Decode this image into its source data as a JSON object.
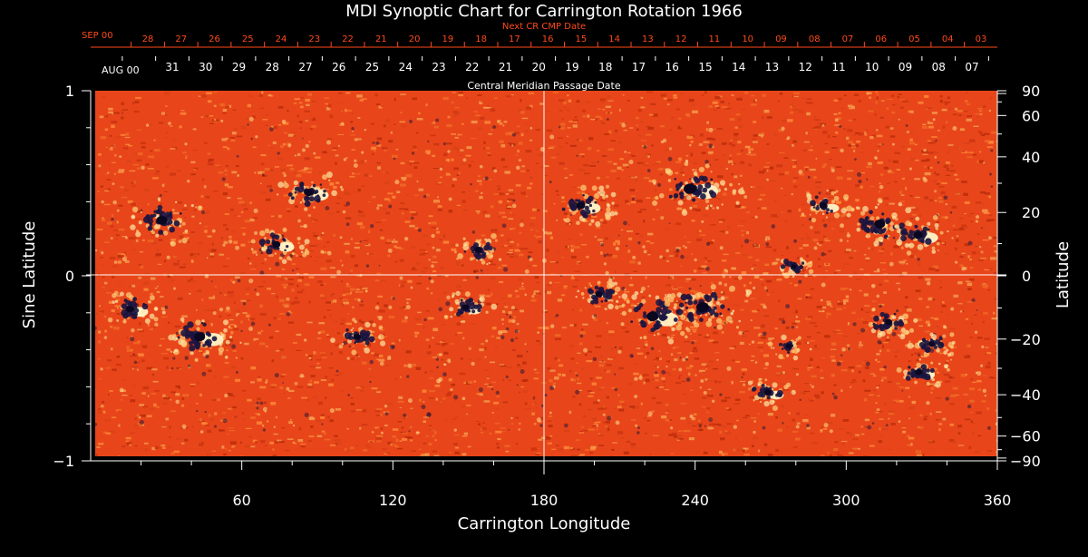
{
  "chart_data": {
    "type": "heatmap",
    "title": "MDI Synoptic Chart for Carrington Rotation 1966",
    "xlabel": "Carrington Longitude",
    "ylabel_left": "Sine Latitude",
    "ylabel_right": "Latitude",
    "xlim": [
      0,
      360
    ],
    "ylim_sine": [
      -1,
      1
    ],
    "x_ticks": [
      60,
      120,
      180,
      240,
      300,
      360
    ],
    "y_ticks_left": [
      {
        "value": 1,
        "label": "1"
      },
      {
        "value": 0,
        "label": "0"
      },
      {
        "value": -1,
        "label": "−1"
      }
    ],
    "y_ticks_right_latitude": [
      90,
      60,
      40,
      20,
      0,
      -20,
      -40,
      -60,
      -90
    ],
    "central_meridian_longitude": 180,
    "equator_sine_latitude": 0,
    "top_axis_label": "Central Meridian Passage Date",
    "top_axis_start_label": "AUG 00",
    "top_axis_dates": [
      "31",
      "30",
      "29",
      "28",
      "27",
      "26",
      "25",
      "24",
      "23",
      "22",
      "21",
      "20",
      "19",
      "18",
      "17",
      "16",
      "15",
      "14",
      "13",
      "12",
      "11",
      "10",
      "09",
      "08",
      "07"
    ],
    "next_cr_label": "Next CR CMP Date",
    "next_cr_start_label": "SEP 00",
    "next_cr_dates": [
      "28",
      "27",
      "26",
      "25",
      "24",
      "23",
      "22",
      "21",
      "20",
      "19",
      "18",
      "17",
      "16",
      "15",
      "14",
      "13",
      "12",
      "11",
      "10",
      "09",
      "08",
      "07",
      "06",
      "05",
      "04",
      "03"
    ],
    "colors": {
      "background": "#000000",
      "field_base": "#e8461a",
      "negative_polarity": "#1a1440",
      "positive_polarity": "#fff6c8",
      "axis": "#ffffff",
      "next_cr_text": "#ff4a1a"
    },
    "active_regions": [
      {
        "lon": 88,
        "sinlat": 0.45,
        "polarity": "mixed",
        "size": 1.0
      },
      {
        "lon": 75,
        "sinlat": 0.17,
        "polarity": "mixed",
        "size": 0.9
      },
      {
        "lon": 30,
        "sinlat": 0.3,
        "polarity": "negative",
        "size": 1.2
      },
      {
        "lon": 17,
        "sinlat": -0.18,
        "polarity": "mixed",
        "size": 0.9
      },
      {
        "lon": 45,
        "sinlat": -0.33,
        "polarity": "mixed",
        "size": 1.2
      },
      {
        "lon": 107,
        "sinlat": -0.33,
        "polarity": "negative",
        "size": 0.8
      },
      {
        "lon": 150,
        "sinlat": -0.17,
        "polarity": "mixed",
        "size": 0.8
      },
      {
        "lon": 203,
        "sinlat": -0.1,
        "polarity": "negative",
        "size": 0.8
      },
      {
        "lon": 225,
        "sinlat": -0.22,
        "polarity": "mixed",
        "size": 1.3
      },
      {
        "lon": 245,
        "sinlat": -0.17,
        "polarity": "negative",
        "size": 1.4
      },
      {
        "lon": 240,
        "sinlat": 0.47,
        "polarity": "mixed",
        "size": 1.4
      },
      {
        "lon": 196,
        "sinlat": 0.38,
        "polarity": "mixed",
        "size": 1.0
      },
      {
        "lon": 292,
        "sinlat": 0.38,
        "polarity": "mixed",
        "size": 0.8
      },
      {
        "lon": 315,
        "sinlat": 0.28,
        "polarity": "negative",
        "size": 1.2
      },
      {
        "lon": 330,
        "sinlat": 0.22,
        "polarity": "mixed",
        "size": 1.0
      },
      {
        "lon": 270,
        "sinlat": -0.63,
        "polarity": "mixed",
        "size": 0.8
      },
      {
        "lon": 330,
        "sinlat": -0.52,
        "polarity": "mixed",
        "size": 0.8
      },
      {
        "lon": 335,
        "sinlat": -0.37,
        "polarity": "negative",
        "size": 0.7
      },
      {
        "lon": 318,
        "sinlat": -0.25,
        "polarity": "negative",
        "size": 0.8
      },
      {
        "lon": 155,
        "sinlat": 0.14,
        "polarity": "negative",
        "size": 0.8
      },
      {
        "lon": 278,
        "sinlat": -0.38,
        "polarity": "negative",
        "size": 0.6
      },
      {
        "lon": 280,
        "sinlat": 0.05,
        "polarity": "negative",
        "size": 0.6
      }
    ]
  }
}
